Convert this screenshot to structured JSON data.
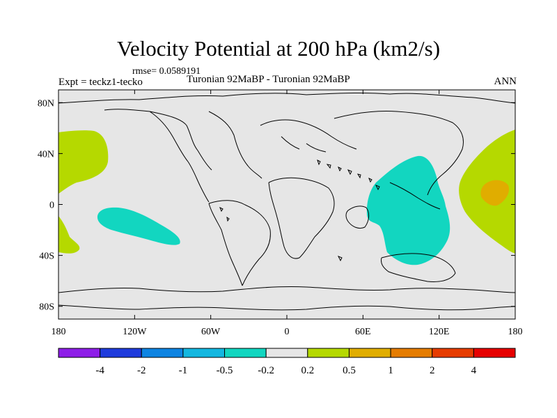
{
  "title": "Velocity Potential at 200 hPa (km2/s)",
  "rmse": "rmse= 0.0589191",
  "expt": "Expt = teckz1-tecko",
  "case": "Turonian  92MaBP - Turonian  92MaBP",
  "season": "ANN",
  "map": {
    "lon_range": [
      -180,
      180
    ],
    "lat_range": [
      -90,
      90
    ],
    "y_ticks": [
      {
        "lat": 80,
        "label": "80N"
      },
      {
        "lat": 40,
        "label": "40N"
      },
      {
        "lat": 0,
        "label": "0"
      },
      {
        "lat": -40,
        "label": "40S"
      },
      {
        "lat": -80,
        "label": "80S"
      }
    ],
    "x_ticks": [
      {
        "lon": -180,
        "label": "180"
      },
      {
        "lon": -120,
        "label": "120W"
      },
      {
        "lon": -60,
        "label": "60W"
      },
      {
        "lon": 0,
        "label": "0"
      },
      {
        "lon": 60,
        "label": "60E"
      },
      {
        "lon": 120,
        "label": "120E"
      },
      {
        "lon": 180,
        "label": "180"
      }
    ],
    "background_color": "#e6e6e6"
  },
  "colorbar": {
    "colors": [
      "#8e1ee8",
      "#1f3bdc",
      "#0e84e2",
      "#14b7e0",
      "#12d6c0",
      "#e6e6e6",
      "#b5d900",
      "#e0ad00",
      "#e57c00",
      "#e63c00",
      "#e60000"
    ],
    "labels": [
      "-4",
      "-2",
      "-1",
      "-0.5",
      "-0.2",
      "0.2",
      "0.5",
      "1",
      "2",
      "4"
    ]
  }
}
